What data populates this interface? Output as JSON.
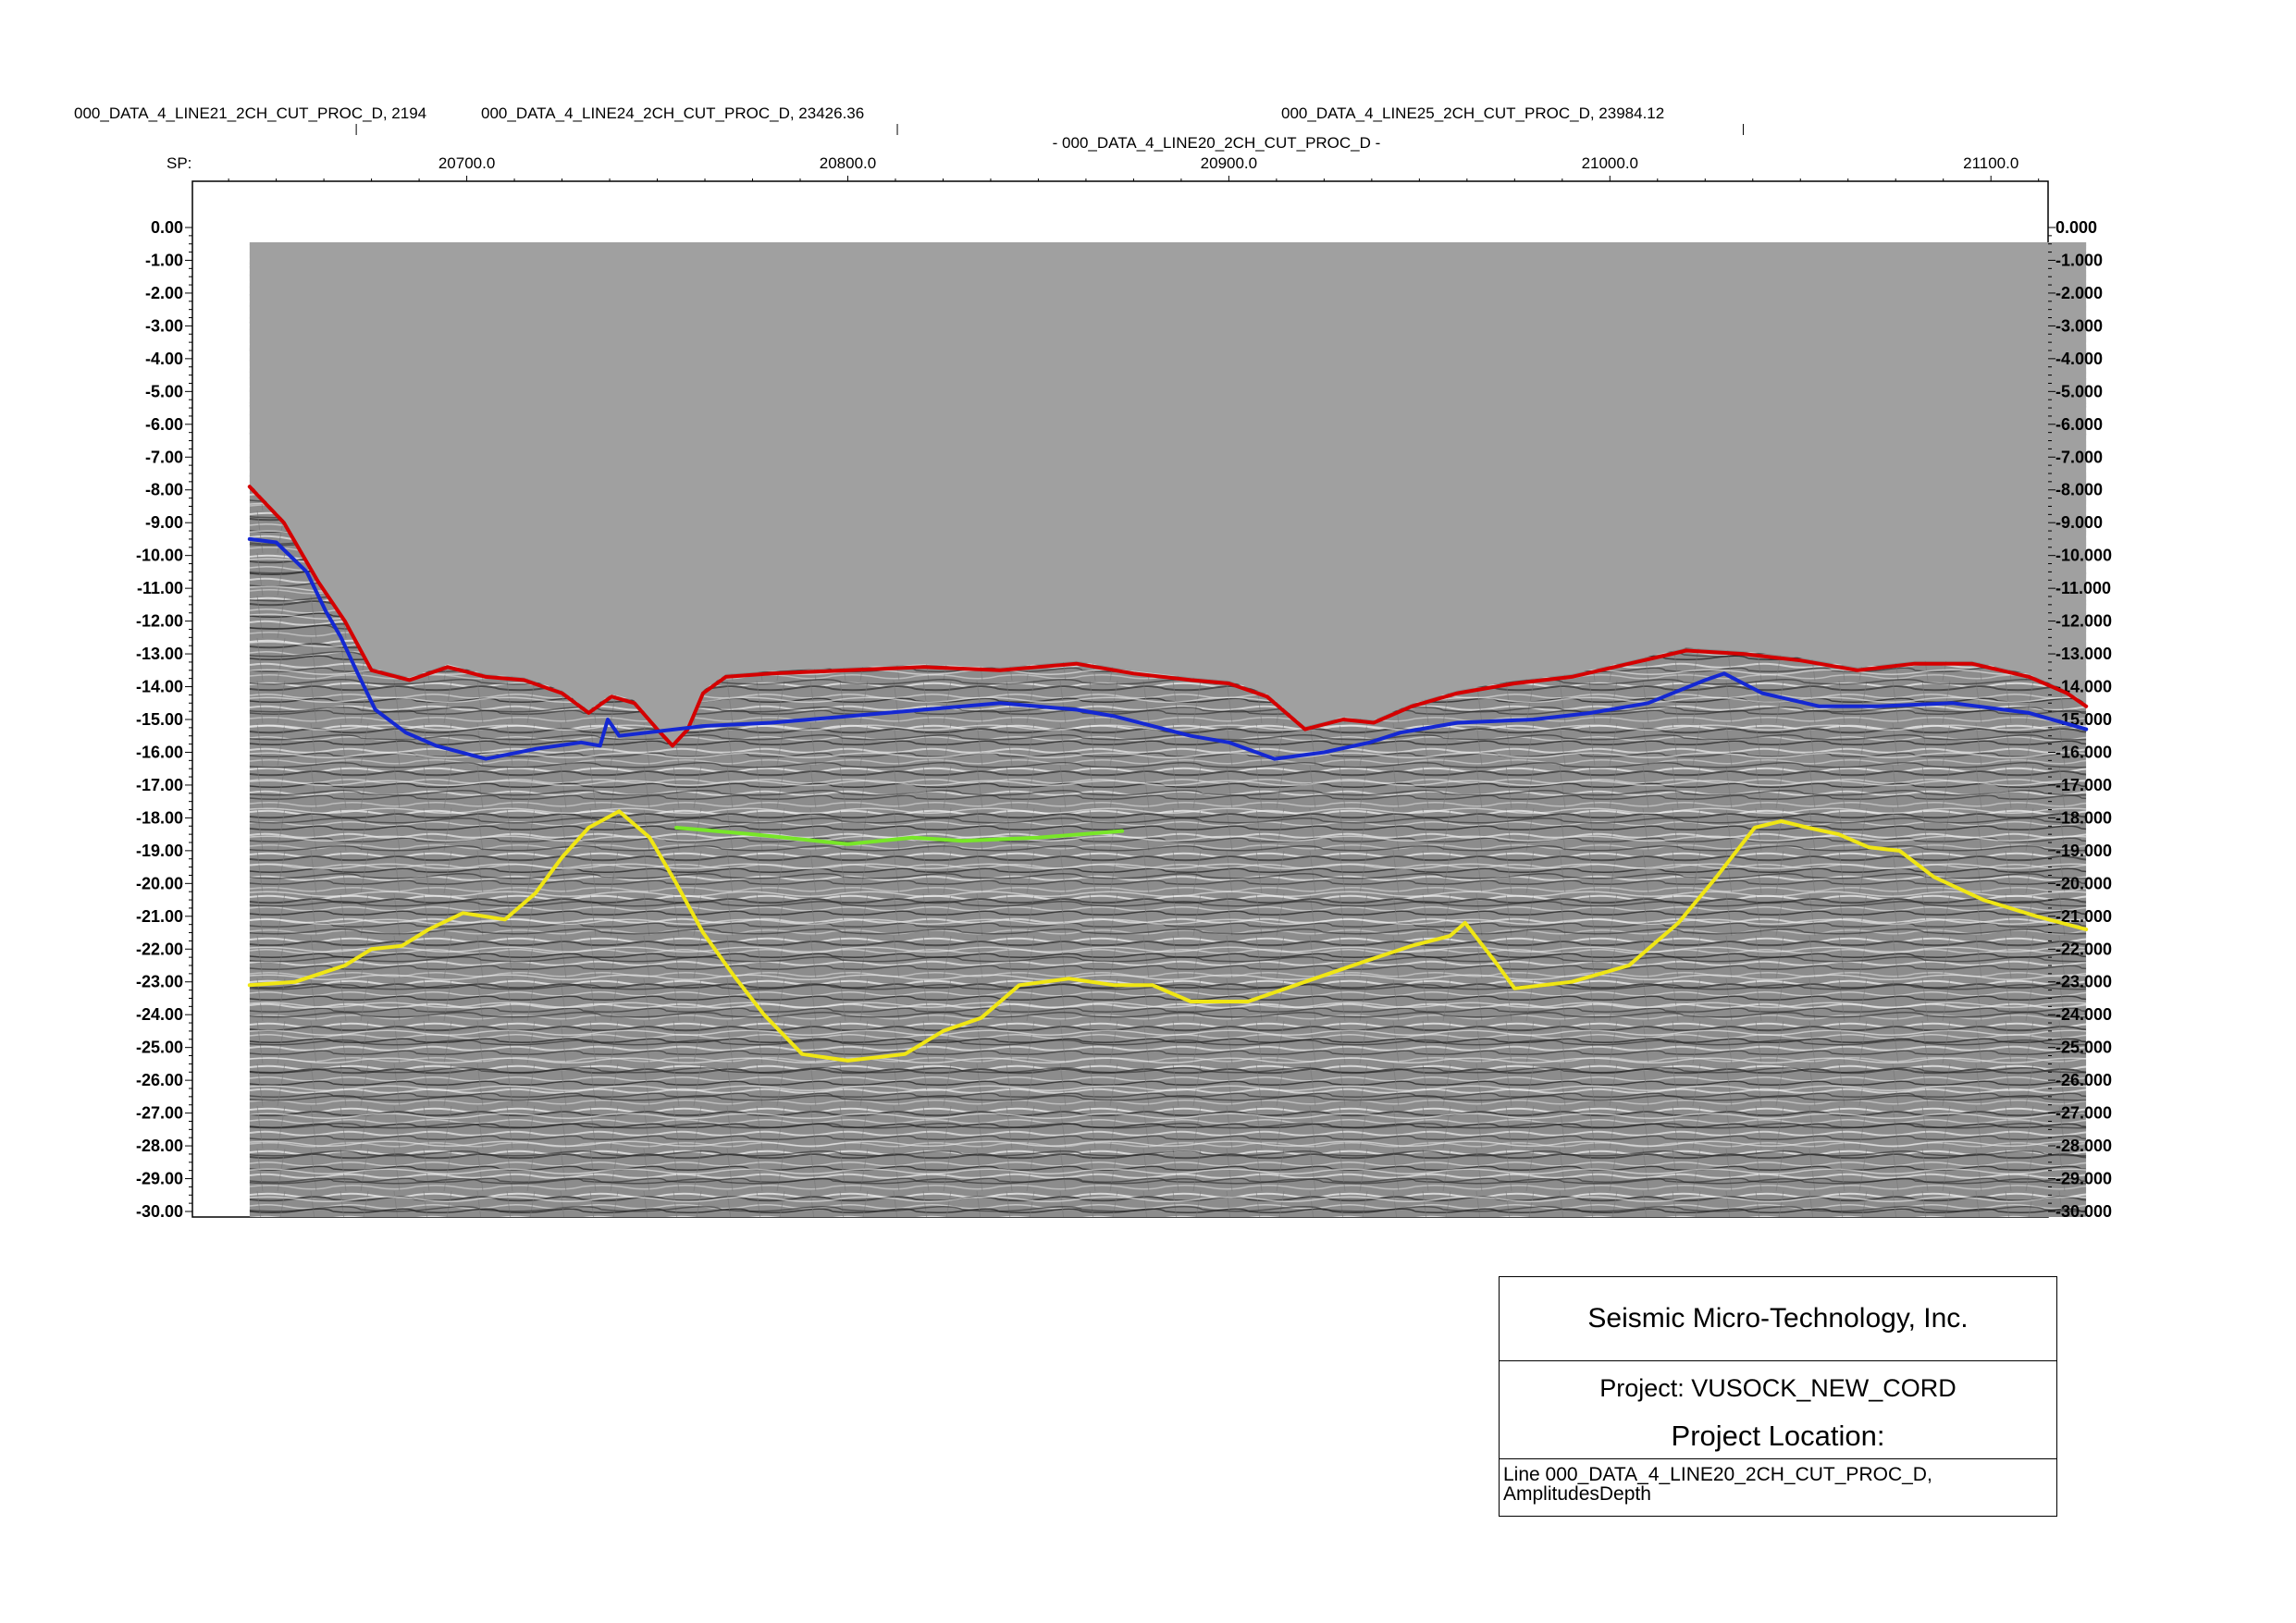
{
  "top_labels": [
    {
      "text": "000_DATA_4_LINE21_2CH_CUT_PROC_D, 2194"
    },
    {
      "text": "000_DATA_4_LINE24_2CH_CUT_PROC_D, 23426.36"
    },
    {
      "text": "000_DATA_4_LINE25_2CH_CUT_PROC_D, 23984.12"
    },
    {
      "text": "- 000_DATA_4_LINE20_2CH_CUT_PROC_D -"
    }
  ],
  "title_block": {
    "company": "Seismic Micro-Technology, Inc.",
    "project": "Project: VUSOCK_NEW_CORD",
    "location": "Project Location:",
    "line_info": "Line 000_DATA_4_LINE20_2CH_CUT_PROC_D, AmplitudesDepth"
  },
  "colors": {
    "seabed_horizon": "#d40000",
    "blue_horizon": "#1428d2",
    "yellow_horizon": "#f0e614",
    "green_horizon": "#78e628",
    "water_column": "#a0a0a0",
    "seismic_background": "#8c8c8c"
  },
  "chart_data": {
    "type": "line",
    "xlabel": "SP:",
    "x_axis": {
      "range": [
        20628,
        21115
      ],
      "tick_values": [
        20700.0,
        20800.0,
        20900.0,
        21000.0,
        21100.0
      ],
      "tick_labels": [
        "20700.0",
        "20800.0",
        "20900.0",
        "21000.0",
        "21100.0"
      ]
    },
    "y_axis": {
      "range": [
        -30,
        0
      ],
      "left_tick_labels": [
        "0.00",
        "-1.00",
        "-2.00",
        "-3.00",
        "-4.00",
        "-5.00",
        "-6.00",
        "-7.00",
        "-8.00",
        "-9.00",
        "-10.00",
        "-11.00",
        "-12.00",
        "-13.00",
        "-14.00",
        "-15.00",
        "-16.00",
        "-17.00",
        "-18.00",
        "-19.00",
        "-20.00",
        "-21.00",
        "-22.00",
        "-23.00",
        "-24.00",
        "-25.00",
        "-26.00",
        "-27.00",
        "-28.00",
        "-29.00",
        "-30.00"
      ],
      "right_tick_labels": [
        "0.000",
        "-1.000",
        "-2.000",
        "-3.000",
        "-4.000",
        "-5.000",
        "-6.000",
        "-7.000",
        "-8.000",
        "-9.000",
        "-10.000",
        "-11.000",
        "-12.000",
        "-13.000",
        "-14.000",
        "-15.000",
        "-16.000",
        "-17.000",
        "-18.000",
        "-19.000",
        "-20.000",
        "-21.000",
        "-22.000",
        "-23.000",
        "-24.000",
        "-25.000",
        "-26.000",
        "-27.000",
        "-28.000",
        "-29.000",
        "-30.000"
      ]
    },
    "data_extent": {
      "x": [
        20643,
        21125
      ],
      "y": [
        -30,
        -0.45
      ]
    },
    "line_markers": [
      20671,
      20813,
      21035
    ],
    "series": [
      {
        "color": "#d40000",
        "points": [
          [
            20643,
            -7.9
          ],
          [
            20652,
            -9.0
          ],
          [
            20661,
            -10.8
          ],
          [
            20668,
            -12.0
          ],
          [
            20675,
            -13.5
          ],
          [
            20685,
            -13.8
          ],
          [
            20695,
            -13.4
          ],
          [
            20705,
            -13.7
          ],
          [
            20715,
            -13.8
          ],
          [
            20725,
            -14.2
          ],
          [
            20732,
            -14.8
          ],
          [
            20738,
            -14.3
          ],
          [
            20744,
            -14.5
          ],
          [
            20750,
            -15.3
          ],
          [
            20754,
            -15.8
          ],
          [
            20758,
            -15.3
          ],
          [
            20762,
            -14.2
          ],
          [
            20768,
            -13.7
          ],
          [
            20780,
            -13.6
          ],
          [
            20800,
            -13.5
          ],
          [
            20820,
            -13.4
          ],
          [
            20840,
            -13.5
          ],
          [
            20860,
            -13.3
          ],
          [
            20875,
            -13.6
          ],
          [
            20890,
            -13.8
          ],
          [
            20900,
            -13.9
          ],
          [
            20910,
            -14.3
          ],
          [
            20920,
            -15.3
          ],
          [
            20930,
            -15.0
          ],
          [
            20938,
            -15.1
          ],
          [
            20948,
            -14.6
          ],
          [
            20960,
            -14.2
          ],
          [
            20975,
            -13.9
          ],
          [
            20990,
            -13.7
          ],
          [
            21005,
            -13.3
          ],
          [
            21020,
            -12.9
          ],
          [
            21035,
            -13.0
          ],
          [
            21050,
            -13.2
          ],
          [
            21065,
            -13.5
          ],
          [
            21080,
            -13.3
          ],
          [
            21095,
            -13.3
          ],
          [
            21110,
            -13.7
          ],
          [
            21120,
            -14.2
          ],
          [
            21125,
            -14.6
          ]
        ]
      },
      {
        "color": "#1428d2",
        "points": [
          [
            20643,
            -9.5
          ],
          [
            20650,
            -9.6
          ],
          [
            20658,
            -10.5
          ],
          [
            20663,
            -11.7
          ],
          [
            20667,
            -12.5
          ],
          [
            20671,
            -13.5
          ],
          [
            20676,
            -14.7
          ],
          [
            20684,
            -15.4
          ],
          [
            20692,
            -15.8
          ],
          [
            20705,
            -16.2
          ],
          [
            20718,
            -15.9
          ],
          [
            20730,
            -15.7
          ],
          [
            20735,
            -15.8
          ],
          [
            20737,
            -15.0
          ],
          [
            20740,
            -15.5
          ],
          [
            20762,
            -15.2
          ],
          [
            20780,
            -15.1
          ],
          [
            20800,
            -14.9
          ],
          [
            20820,
            -14.7
          ],
          [
            20840,
            -14.5
          ],
          [
            20860,
            -14.7
          ],
          [
            20870,
            -14.9
          ],
          [
            20880,
            -15.2
          ],
          [
            20890,
            -15.5
          ],
          [
            20900,
            -15.7
          ],
          [
            20912,
            -16.2
          ],
          [
            20925,
            -16.0
          ],
          [
            20937,
            -15.7
          ],
          [
            20945,
            -15.4
          ],
          [
            20960,
            -15.1
          ],
          [
            20980,
            -15.0
          ],
          [
            20995,
            -14.8
          ],
          [
            21010,
            -14.5
          ],
          [
            21025,
            -13.8
          ],
          [
            21030,
            -13.6
          ],
          [
            21040,
            -14.2
          ],
          [
            21055,
            -14.6
          ],
          [
            21070,
            -14.6
          ],
          [
            21090,
            -14.5
          ],
          [
            21110,
            -14.8
          ],
          [
            21125,
            -15.3
          ]
        ]
      },
      {
        "color": "#f0e614",
        "points": [
          [
            20643,
            -23.1
          ],
          [
            20655,
            -23.0
          ],
          [
            20668,
            -22.5
          ],
          [
            20675,
            -22.0
          ],
          [
            20683,
            -21.9
          ],
          [
            20690,
            -21.4
          ],
          [
            20699,
            -20.9
          ],
          [
            20710,
            -21.1
          ],
          [
            20718,
            -20.3
          ],
          [
            20725,
            -19.2
          ],
          [
            20732,
            -18.3
          ],
          [
            20740,
            -17.8
          ],
          [
            20748,
            -18.6
          ],
          [
            20755,
            -20.0
          ],
          [
            20762,
            -21.5
          ],
          [
            20770,
            -22.8
          ],
          [
            20778,
            -24.0
          ],
          [
            20788,
            -25.2
          ],
          [
            20800,
            -25.4
          ],
          [
            20815,
            -25.2
          ],
          [
            20825,
            -24.5
          ],
          [
            20835,
            -24.1
          ],
          [
            20845,
            -23.1
          ],
          [
            20858,
            -22.9
          ],
          [
            20870,
            -23.1
          ],
          [
            20880,
            -23.1
          ],
          [
            20890,
            -23.6
          ],
          [
            20905,
            -23.6
          ],
          [
            20920,
            -23.0
          ],
          [
            20935,
            -22.4
          ],
          [
            20948,
            -21.9
          ],
          [
            20958,
            -21.6
          ],
          [
            20962,
            -21.2
          ],
          [
            20970,
            -22.4
          ],
          [
            20975,
            -23.2
          ],
          [
            20990,
            -23.0
          ],
          [
            21005,
            -22.5
          ],
          [
            21018,
            -21.2
          ],
          [
            21028,
            -19.8
          ],
          [
            21038,
            -18.3
          ],
          [
            21045,
            -18.1
          ],
          [
            21052,
            -18.3
          ],
          [
            21060,
            -18.5
          ],
          [
            21068,
            -18.9
          ],
          [
            21076,
            -19.0
          ],
          [
            21085,
            -19.8
          ],
          [
            21098,
            -20.5
          ],
          [
            21112,
            -21.0
          ],
          [
            21125,
            -21.4
          ]
        ]
      },
      {
        "color": "#78e628",
        "points": [
          [
            20755,
            -18.3
          ],
          [
            20775,
            -18.5
          ],
          [
            20800,
            -18.8
          ],
          [
            20817,
            -18.6
          ],
          [
            20830,
            -18.7
          ],
          [
            20850,
            -18.6
          ],
          [
            20872,
            -18.4
          ]
        ]
      }
    ]
  }
}
